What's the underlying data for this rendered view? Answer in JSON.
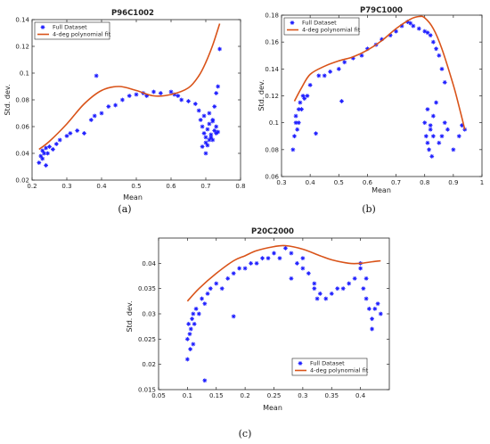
{
  "figure": {
    "captions": [
      "(a)",
      "(b)",
      "(c)"
    ]
  },
  "chart_data": [
    {
      "type": "scatter",
      "title": "P96C1002",
      "xlabel": "Mean",
      "ylabel": "Std. dev.",
      "xlim": [
        0.2,
        0.8
      ],
      "ylim": [
        0.02,
        0.14
      ],
      "xticks": [
        0.2,
        0.3,
        0.4,
        0.5,
        0.6,
        0.7,
        0.8
      ],
      "yticks": [
        0.02,
        0.04,
        0.06,
        0.08,
        0.1,
        0.12,
        0.14
      ],
      "xtick_labels": [
        "0.2",
        "0.3",
        "0.4",
        "0.5",
        "0.6",
        "0.7",
        "0.8"
      ],
      "ytick_labels": [
        "0.02",
        "0.04",
        "0.06",
        "0.08",
        "0.1",
        "0.12",
        "0.14"
      ],
      "legend": [
        "Full Dataset",
        "4-deg polynomial fit"
      ],
      "legend_position": "top-left",
      "colors": {
        "points": "#1a1aff",
        "fit": "#d95319"
      },
      "series": [
        {
          "name": "Full Dataset",
          "kind": "scatter",
          "x": [
            0.22,
            0.225,
            0.23,
            0.23,
            0.235,
            0.24,
            0.24,
            0.245,
            0.25,
            0.26,
            0.27,
            0.28,
            0.3,
            0.31,
            0.33,
            0.35,
            0.37,
            0.38,
            0.385,
            0.4,
            0.42,
            0.44,
            0.46,
            0.48,
            0.5,
            0.52,
            0.53,
            0.55,
            0.57,
            0.6,
            0.61,
            0.62,
            0.63,
            0.65,
            0.67,
            0.68,
            0.685,
            0.69,
            0.695,
            0.7,
            0.7,
            0.705,
            0.71,
            0.71,
            0.715,
            0.72,
            0.72,
            0.725,
            0.73,
            0.73,
            0.735,
            0.74,
            0.69,
            0.7,
            0.71,
            0.72,
            0.73,
            0.695,
            0.705,
            0.715,
            0.725,
            0.735
          ],
          "y": [
            0.033,
            0.038,
            0.042,
            0.036,
            0.04,
            0.044,
            0.031,
            0.04,
            0.045,
            0.043,
            0.047,
            0.05,
            0.053,
            0.055,
            0.057,
            0.055,
            0.065,
            0.068,
            0.098,
            0.07,
            0.075,
            0.076,
            0.08,
            0.083,
            0.084,
            0.085,
            0.083,
            0.086,
            0.085,
            0.086,
            0.084,
            0.083,
            0.08,
            0.079,
            0.077,
            0.072,
            0.065,
            0.06,
            0.055,
            0.052,
            0.048,
            0.058,
            0.062,
            0.07,
            0.054,
            0.05,
            0.064,
            0.057,
            0.055,
            0.085,
            0.09,
            0.118,
            0.045,
            0.04,
            0.05,
            0.065,
            0.06,
            0.068,
            0.046,
            0.052,
            0.075,
            0.056
          ]
        },
        {
          "name": "4-deg polynomial fit",
          "kind": "line",
          "x": [
            0.22,
            0.25,
            0.3,
            0.35,
            0.4,
            0.45,
            0.5,
            0.55,
            0.6,
            0.65,
            0.68,
            0.7,
            0.72,
            0.74
          ],
          "y": [
            0.043,
            0.049,
            0.062,
            0.077,
            0.087,
            0.09,
            0.087,
            0.083,
            0.084,
            0.089,
            0.098,
            0.108,
            0.121,
            0.137
          ]
        }
      ]
    },
    {
      "type": "scatter",
      "title": "P79C1000",
      "xlabel": "Mean",
      "ylabel": "Std. dev.",
      "xlim": [
        0.3,
        1.0
      ],
      "ylim": [
        0.06,
        0.18
      ],
      "xticks": [
        0.3,
        0.4,
        0.5,
        0.6,
        0.7,
        0.8,
        0.9,
        1.0
      ],
      "yticks": [
        0.06,
        0.08,
        0.1,
        0.12,
        0.14,
        0.16,
        0.18
      ],
      "xtick_labels": [
        "0.3",
        "0.4",
        "0.5",
        "0.6",
        "0.7",
        "0.8",
        "0.9",
        "1"
      ],
      "ytick_labels": [
        "0.06",
        "0.08",
        "0.1",
        "0.12",
        "0.14",
        "0.16",
        "0.18"
      ],
      "legend": [
        "Full Dataset",
        "4-deg polynomial fit"
      ],
      "legend_position": "top-left",
      "colors": {
        "points": "#1a1aff",
        "fit": "#d95319"
      },
      "series": [
        {
          "name": "Full Dataset",
          "kind": "scatter",
          "x": [
            0.34,
            0.345,
            0.35,
            0.35,
            0.355,
            0.36,
            0.36,
            0.365,
            0.37,
            0.375,
            0.38,
            0.39,
            0.4,
            0.42,
            0.43,
            0.45,
            0.47,
            0.5,
            0.51,
            0.52,
            0.55,
            0.58,
            0.6,
            0.63,
            0.65,
            0.68,
            0.7,
            0.72,
            0.74,
            0.75,
            0.76,
            0.78,
            0.8,
            0.81,
            0.82,
            0.83,
            0.84,
            0.85,
            0.86,
            0.87,
            0.8,
            0.805,
            0.81,
            0.815,
            0.82,
            0.825,
            0.83,
            0.81,
            0.82,
            0.83,
            0.84,
            0.85,
            0.86,
            0.87,
            0.88,
            0.9,
            0.92,
            0.93,
            0.94
          ],
          "y": [
            0.08,
            0.09,
            0.1,
            0.105,
            0.095,
            0.11,
            0.1,
            0.115,
            0.11,
            0.12,
            0.118,
            0.12,
            0.128,
            0.092,
            0.135,
            0.135,
            0.138,
            0.14,
            0.116,
            0.145,
            0.148,
            0.15,
            0.155,
            0.158,
            0.162,
            0.165,
            0.168,
            0.172,
            0.175,
            0.174,
            0.172,
            0.17,
            0.168,
            0.167,
            0.165,
            0.16,
            0.155,
            0.15,
            0.14,
            0.13,
            0.1,
            0.09,
            0.085,
            0.08,
            0.095,
            0.075,
            0.09,
            0.11,
            0.098,
            0.105,
            0.115,
            0.085,
            0.09,
            0.1,
            0.095,
            0.08,
            0.09,
            0.098,
            0.095
          ]
        },
        {
          "name": "4-deg polynomial fit",
          "kind": "line",
          "x": [
            0.345,
            0.37,
            0.4,
            0.45,
            0.5,
            0.55,
            0.6,
            0.65,
            0.7,
            0.75,
            0.78,
            0.8,
            0.83,
            0.86,
            0.9,
            0.92,
            0.94
          ],
          "y": [
            0.116,
            0.126,
            0.136,
            0.142,
            0.146,
            0.149,
            0.154,
            0.161,
            0.17,
            0.177,
            0.179,
            0.178,
            0.17,
            0.155,
            0.128,
            0.112,
            0.095
          ]
        }
      ]
    },
    {
      "type": "scatter",
      "title": "P20C2000",
      "xlabel": "Mean",
      "ylabel": "Std. dev.",
      "xlim": [
        0.05,
        0.45
      ],
      "ylim": [
        0.015,
        0.045
      ],
      "xticks": [
        0.05,
        0.1,
        0.15,
        0.2,
        0.25,
        0.3,
        0.35,
        0.4
      ],
      "yticks": [
        0.015,
        0.02,
        0.025,
        0.03,
        0.035,
        0.04
      ],
      "xtick_labels": [
        "0.05",
        "0.1",
        "0.15",
        "0.2",
        "0.25",
        "0.3",
        "0.35",
        "0.4"
      ],
      "ytick_labels": [
        "0.015",
        "0.02",
        "0.025",
        "0.03",
        "0.035",
        "0.04"
      ],
      "legend": [
        "Full Dataset",
        "4-deg polynomial fit"
      ],
      "legend_position": "bottom-right",
      "colors": {
        "points": "#1a1aff",
        "fit": "#d95319"
      },
      "series": [
        {
          "name": "Full Dataset",
          "kind": "scatter",
          "x": [
            0.1,
            0.1,
            0.102,
            0.104,
            0.105,
            0.106,
            0.108,
            0.11,
            0.11,
            0.112,
            0.115,
            0.12,
            0.125,
            0.13,
            0.135,
            0.14,
            0.15,
            0.16,
            0.17,
            0.18,
            0.19,
            0.2,
            0.21,
            0.22,
            0.23,
            0.24,
            0.25,
            0.26,
            0.27,
            0.28,
            0.29,
            0.3,
            0.31,
            0.32,
            0.325,
            0.33,
            0.34,
            0.35,
            0.36,
            0.37,
            0.38,
            0.39,
            0.4,
            0.405,
            0.41,
            0.415,
            0.42,
            0.425,
            0.43,
            0.435,
            0.13,
            0.18,
            0.28,
            0.3,
            0.32,
            0.4,
            0.41,
            0.42
          ],
          "y": [
            0.021,
            0.025,
            0.028,
            0.026,
            0.023,
            0.027,
            0.029,
            0.03,
            0.024,
            0.028,
            0.031,
            0.03,
            0.033,
            0.032,
            0.034,
            0.035,
            0.036,
            0.035,
            0.037,
            0.038,
            0.039,
            0.039,
            0.04,
            0.04,
            0.041,
            0.041,
            0.042,
            0.041,
            0.043,
            0.042,
            0.04,
            0.041,
            0.038,
            0.035,
            0.033,
            0.034,
            0.033,
            0.034,
            0.035,
            0.035,
            0.036,
            0.037,
            0.04,
            0.035,
            0.033,
            0.031,
            0.029,
            0.031,
            0.032,
            0.03,
            0.0168,
            0.0295,
            0.037,
            0.039,
            0.036,
            0.039,
            0.037,
            0.027
          ]
        },
        {
          "name": "4-deg polynomial fit",
          "kind": "line",
          "x": [
            0.1,
            0.12,
            0.15,
            0.18,
            0.2,
            0.22,
            0.25,
            0.27,
            0.3,
            0.33,
            0.35,
            0.38,
            0.4,
            0.42,
            0.435
          ],
          "y": [
            0.0325,
            0.035,
            0.038,
            0.0405,
            0.0415,
            0.0425,
            0.0433,
            0.0435,
            0.0428,
            0.0415,
            0.0407,
            0.04,
            0.04,
            0.0403,
            0.0405
          ]
        }
      ]
    }
  ]
}
